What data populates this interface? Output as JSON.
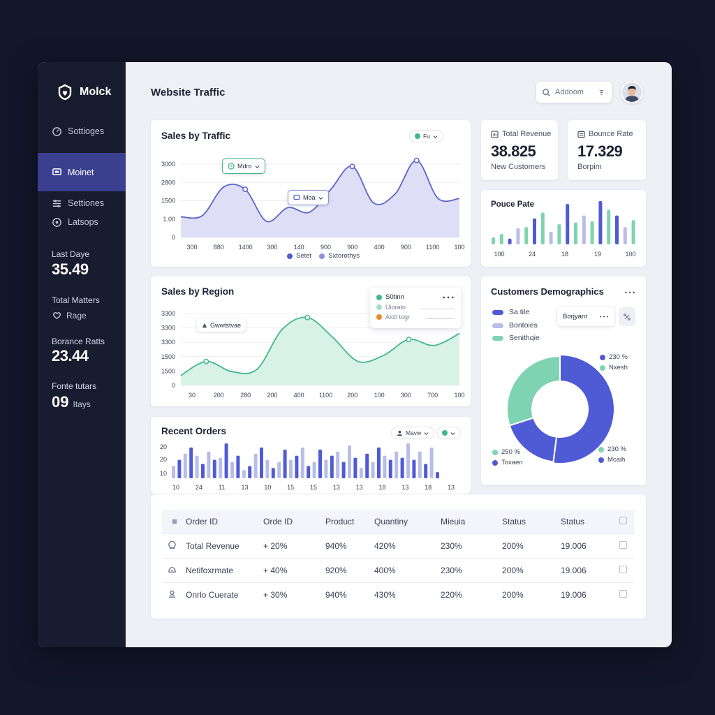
{
  "app": {
    "name": "Molck"
  },
  "sidebar": {
    "items": [
      {
        "label": "Sottioges",
        "icon": "gauge-icon"
      },
      {
        "label": "Moinet",
        "icon": "monitor-icon",
        "active": true
      },
      {
        "label": "Settiones",
        "icon": "sliders-icon"
      },
      {
        "label": "Latsops",
        "icon": "target-icon"
      }
    ],
    "stats": [
      {
        "label": "Last Daye",
        "value": "35.49"
      },
      {
        "label": "Total Matters",
        "sub": "Rage"
      },
      {
        "label": "Borance Ratts",
        "value": "23.44"
      },
      {
        "label": "Fonte tutars",
        "value": "09",
        "sub": "Itays"
      }
    ]
  },
  "header": {
    "title": "Website Traffic",
    "search": {
      "text": "Addoom"
    }
  },
  "sales_traffic": {
    "title": "Sales by Traffic",
    "pill": "Fu",
    "callout_1": "Mdro",
    "callout_2": "Moa",
    "legend": [
      "Setet",
      "Sxtorothys"
    ]
  },
  "kpis": [
    {
      "label": "Total Revenue",
      "value": "38.825",
      "sub": "New Customers"
    },
    {
      "label": "Bounce Rate",
      "value": "17.329",
      "sub": "Borpim"
    }
  ],
  "pounce": {
    "title": "Pouce Pate"
  },
  "sales_region": {
    "title": "Sales by Region",
    "callout": "Gwwtstvae",
    "legend_box": [
      {
        "label": "S0tinn",
        "color": "#3fb889"
      },
      {
        "label": "Uiorato",
        "color": "#a8dcc4"
      },
      {
        "label": "Alctl togr",
        "color": "#e98a2e"
      }
    ]
  },
  "recent_orders": {
    "title": "Recent Orders",
    "pill": "Mavw"
  },
  "demographics": {
    "title": "Customers Demographics",
    "legend": [
      {
        "label": "Sa tile",
        "color": "#4f5bd5"
      },
      {
        "label": "Bontoies",
        "color": "#b9bde8"
      },
      {
        "label": "Senithqie",
        "color": "#7ed3b2"
      }
    ],
    "dropdown": "Borjyanr",
    "labels": [
      {
        "text": "230 %",
        "color": "#4f5bd5"
      },
      {
        "text": "Nxesh",
        "color": "#7ed3b2"
      },
      {
        "text": "250 %",
        "color": "#7ed3b2"
      },
      {
        "text": "Toxaen",
        "color": "#4f5bd5"
      },
      {
        "text": "230 %",
        "color": "#7ed3b2"
      },
      {
        "text": "Mcaih",
        "color": "#4f5bd5"
      }
    ]
  },
  "orders_table": {
    "headers": [
      "Order ID",
      "Orde ID",
      "Product",
      "Quantiny",
      "Mieuia",
      "Status",
      "Status"
    ],
    "rows": [
      [
        "Total Revenue",
        "+ 20%",
        "940%",
        "420%",
        "230%",
        "200%",
        "19.006"
      ],
      [
        "Netifoxrmate",
        "+ 40%",
        "920%",
        "400%",
        "230%",
        "200%",
        "19.006"
      ],
      [
        "Onrlo Cuerate",
        "+ 30%",
        "940%",
        "430%",
        "220%",
        "200%",
        "19.006"
      ]
    ]
  },
  "chart_data": [
    {
      "type": "area",
      "title": "Sales by Traffic",
      "y_ticks": [
        "3000",
        "2800",
        "1500",
        "1.00",
        "0"
      ],
      "x_ticks": [
        "300",
        "880",
        "1400",
        "300",
        "140",
        "900",
        "900",
        "400",
        "900",
        "1100",
        "100"
      ],
      "ylim": [
        0,
        3200
      ],
      "values": [
        900,
        950,
        2200,
        2100,
        700,
        1300,
        1100,
        2100,
        3100,
        1500,
        1900,
        3500,
        1700,
        1700
      ],
      "color": "#5a64c9"
    },
    {
      "type": "area",
      "title": "Sales by Region",
      "y_ticks": [
        "3300",
        "3300",
        "3300",
        "1500",
        "1500",
        "0"
      ],
      "x_ticks": [
        "30",
        "200",
        "280",
        "200",
        "400",
        "1100",
        "200",
        "100",
        "300",
        "700",
        "100"
      ],
      "ylim": [
        0,
        3600
      ],
      "values": [
        500,
        1200,
        700,
        800,
        2800,
        3400,
        2400,
        1200,
        1500,
        2300,
        2000,
        2600
      ],
      "color": "#3fb889"
    },
    {
      "type": "bar",
      "title": "Pouce Pate",
      "x_ticks": [
        "100",
        "24",
        "18",
        "19",
        "100"
      ],
      "values": [
        12,
        18,
        10,
        28,
        30,
        45,
        55,
        22,
        35,
        70,
        38,
        50,
        40,
        75,
        60,
        50,
        30,
        42
      ],
      "colors": [
        "#7ed3b2",
        "#7ed3b2",
        "#4f5bd5",
        "#b9bde8",
        "#7ed3b2",
        "#4f5bd5",
        "#7ed3b2",
        "#b9bde8",
        "#7ed3b2",
        "#4f5bd5",
        "#7ed3b2",
        "#b9bde8",
        "#7ed3b2",
        "#4f5bd5",
        "#7ed3b2",
        "#4f5bd5",
        "#b9bde8",
        "#7ed3b2"
      ]
    },
    {
      "type": "bar",
      "title": "Recent Orders",
      "y_ticks": [
        "20",
        "20",
        "10"
      ],
      "x_ticks": [
        "10",
        "24",
        "11",
        "13",
        "10",
        "15",
        "15",
        "13",
        "13",
        "18",
        "13",
        "18",
        "13"
      ],
      "values": [
        12,
        18,
        24,
        30,
        22,
        14,
        26,
        18,
        20,
        34,
        16,
        22,
        8,
        12,
        24,
        30,
        18,
        10,
        16,
        28,
        18,
        22,
        30,
        12,
        16,
        28,
        18,
        22,
        26,
        16,
        32,
        20,
        10,
        24,
        16,
        30,
        22,
        18,
        26,
        20,
        34,
        18,
        26,
        14,
        30,
        6
      ],
      "colors": [
        "#b9bde8",
        "#4f5bd5"
      ]
    },
    {
      "type": "pie",
      "title": "Customers Demographics",
      "values": [
        52,
        18,
        30
      ],
      "colors": [
        "#4f5bd5",
        "#4f5bd5",
        "#7ed3b2"
      ]
    }
  ]
}
